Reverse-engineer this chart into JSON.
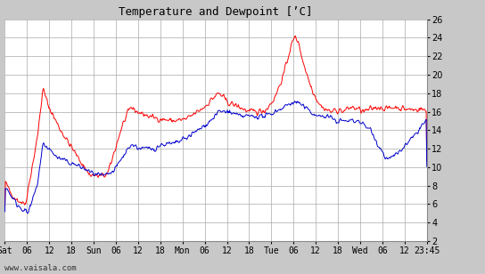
{
  "title": "Temperature and Dewpoint [’C]",
  "temp_color": "#ff0000",
  "dewpoint_color": "#0000cc",
  "background_color": "#c8c8c8",
  "plot_bg_color": "#ffffff",
  "grid_color": "#aaaaaa",
  "ylim": [
    2,
    26
  ],
  "yticks": [
    2,
    4,
    6,
    8,
    10,
    12,
    14,
    16,
    18,
    20,
    22,
    24,
    26
  ],
  "xtick_labels": [
    "Sat",
    "06",
    "12",
    "18",
    "Sun",
    "06",
    "12",
    "18",
    "Mon",
    "06",
    "12",
    "18",
    "Tue",
    "06",
    "12",
    "18",
    "Wed",
    "06",
    "12",
    "23:45"
  ],
  "watermark": "www.vaisala.com",
  "line_width": 0.7,
  "figsize": [
    5.44,
    3.08
  ],
  "dpi": 100
}
